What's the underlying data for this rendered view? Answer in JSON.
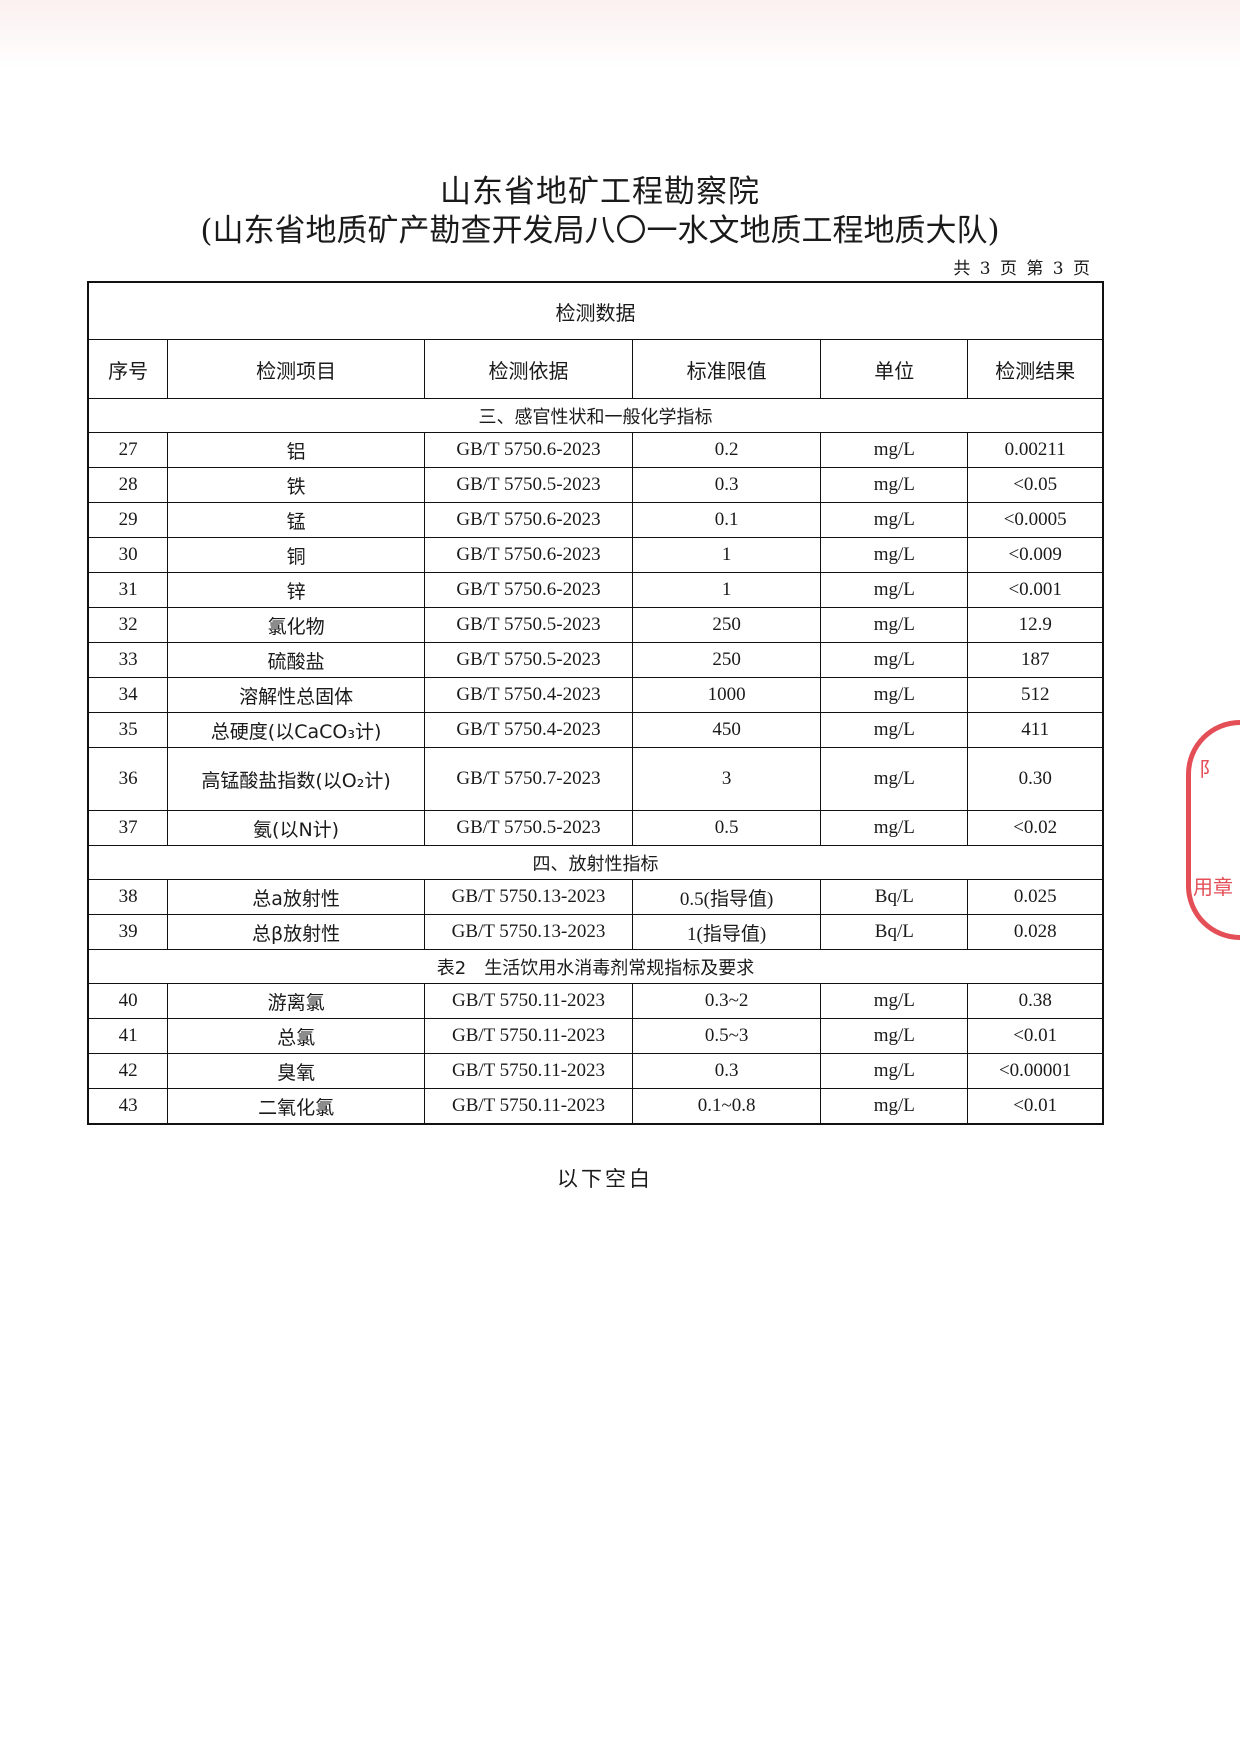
{
  "header": {
    "title": "山东省地矿工程勘察院",
    "subtitle": "(山东省地质矿产勘查开发局八〇一水文地质工程地质大队)",
    "page_info": "共 3 页 第 3 页"
  },
  "table": {
    "caption": "检测数据",
    "columns": [
      "序号",
      "检测项目",
      "检测依据",
      "标准限值",
      "单位",
      "检测结果"
    ],
    "rows": [
      {
        "section": "三、感官性状和一般化学指标"
      },
      {
        "no": "27",
        "item": "铝",
        "method": "GB/T 5750.6-2023",
        "limit": "0.2",
        "unit": "mg/L",
        "result": "0.00211"
      },
      {
        "no": "28",
        "item": "铁",
        "method": "GB/T 5750.5-2023",
        "limit": "0.3",
        "unit": "mg/L",
        "result": "<0.05"
      },
      {
        "no": "29",
        "item": "锰",
        "method": "GB/T 5750.6-2023",
        "limit": "0.1",
        "unit": "mg/L",
        "result": "<0.0005"
      },
      {
        "no": "30",
        "item": "铜",
        "method": "GB/T 5750.6-2023",
        "limit": "1",
        "unit": "mg/L",
        "result": "<0.009"
      },
      {
        "no": "31",
        "item": "锌",
        "method": "GB/T 5750.6-2023",
        "limit": "1",
        "unit": "mg/L",
        "result": "<0.001"
      },
      {
        "no": "32",
        "item": "氯化物",
        "method": "GB/T 5750.5-2023",
        "limit": "250",
        "unit": "mg/L",
        "result": "12.9"
      },
      {
        "no": "33",
        "item": "硫酸盐",
        "method": "GB/T 5750.5-2023",
        "limit": "250",
        "unit": "mg/L",
        "result": "187"
      },
      {
        "no": "34",
        "item": "溶解性总固体",
        "method": "GB/T 5750.4-2023",
        "limit": "1000",
        "unit": "mg/L",
        "result": "512"
      },
      {
        "no": "35",
        "item": "总硬度(以CaCO₃计)",
        "method": "GB/T 5750.4-2023",
        "limit": "450",
        "unit": "mg/L",
        "result": "411"
      },
      {
        "no": "36",
        "item": "高锰酸盐指数(以O₂计)",
        "method": "GB/T 5750.7-2023",
        "limit": "3",
        "unit": "mg/L",
        "result": "0.30",
        "tall": true
      },
      {
        "no": "37",
        "item": "氨(以N计)",
        "method": "GB/T 5750.5-2023",
        "limit": "0.5",
        "unit": "mg/L",
        "result": "<0.02"
      },
      {
        "section": "四、放射性指标"
      },
      {
        "no": "38",
        "item": "总a放射性",
        "method": "GB/T 5750.13-2023",
        "limit": "0.5(指导值)",
        "unit": "Bq/L",
        "result": "0.025"
      },
      {
        "no": "39",
        "item": "总β放射性",
        "method": "GB/T 5750.13-2023",
        "limit": "1(指导值)",
        "unit": "Bq/L",
        "result": "0.028"
      },
      {
        "section": "表2　生活饮用水消毒剂常规指标及要求"
      },
      {
        "no": "40",
        "item": "游离氯",
        "method": "GB/T 5750.11-2023",
        "limit": "0.3~2",
        "unit": "mg/L",
        "result": "0.38"
      },
      {
        "no": "41",
        "item": "总氯",
        "method": "GB/T 5750.11-2023",
        "limit": "0.5~3",
        "unit": "mg/L",
        "result": "<0.01"
      },
      {
        "no": "42",
        "item": "臭氧",
        "method": "GB/T 5750.11-2023",
        "limit": "0.3",
        "unit": "mg/L",
        "result": "<0.00001"
      },
      {
        "no": "43",
        "item": "二氧化氯",
        "method": "GB/T 5750.11-2023",
        "limit": "0.1~0.8",
        "unit": "mg/L",
        "result": "<0.01"
      }
    ]
  },
  "footer": "以下空白",
  "stamp": {
    "color": "#e0303a",
    "partial_text": [
      "阝",
      "用章"
    ]
  }
}
